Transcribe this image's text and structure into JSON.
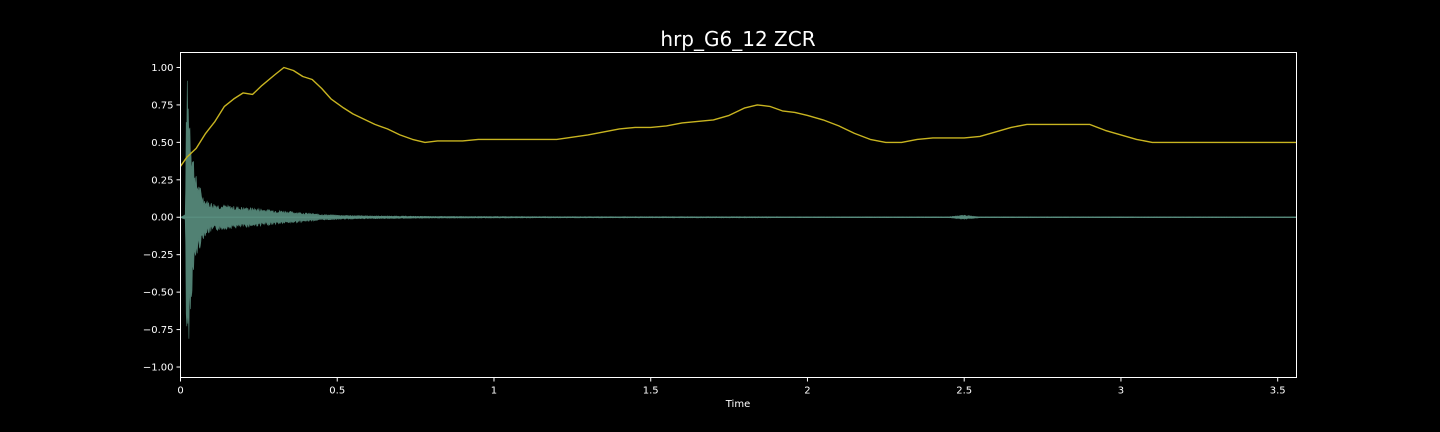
{
  "chart_data": {
    "type": "line",
    "title": "hrp_G6_12 ZCR",
    "xlabel": "Time",
    "ylabel": "",
    "xlim": [
      0,
      3.56
    ],
    "ylim": [
      -1.07,
      1.1
    ],
    "grid": false,
    "legend": "none",
    "x_ticks": [
      0,
      0.5,
      1,
      1.5,
      2,
      2.5,
      3,
      3.5
    ],
    "x_tick_labels": [
      "0",
      "0.5",
      "1",
      "1.5",
      "2",
      "2.5",
      "3",
      "3.5"
    ],
    "y_ticks": [
      -1.0,
      -0.75,
      -0.5,
      -0.25,
      0.0,
      0.25,
      0.5,
      0.75,
      1.0
    ],
    "y_tick_labels": [
      "−1.00",
      "−0.75",
      "−0.50",
      "−0.25",
      "0.00",
      "0.25",
      "0.50",
      "0.75",
      "1.00"
    ],
    "colors": {
      "background": "#000000",
      "axes": "#ffffff",
      "zcr": "#c8b420",
      "waveform": "#5a8f80"
    },
    "series": [
      {
        "kind": "line",
        "x": [
          0.0,
          0.02,
          0.05,
          0.08,
          0.11,
          0.14,
          0.17,
          0.2,
          0.23,
          0.26,
          0.3,
          0.33,
          0.36,
          0.39,
          0.42,
          0.45,
          0.48,
          0.52,
          0.55,
          0.58,
          0.62,
          0.66,
          0.7,
          0.74,
          0.78,
          0.82,
          0.86,
          0.9,
          0.95,
          1.0,
          1.1,
          1.2,
          1.3,
          1.35,
          1.4,
          1.45,
          1.5,
          1.55,
          1.6,
          1.65,
          1.7,
          1.75,
          1.8,
          1.84,
          1.88,
          1.92,
          1.96,
          2.0,
          2.05,
          2.1,
          2.15,
          2.2,
          2.25,
          2.3,
          2.35,
          2.4,
          2.45,
          2.5,
          2.55,
          2.6,
          2.65,
          2.7,
          2.75,
          2.8,
          2.85,
          2.9,
          2.95,
          3.0,
          3.05,
          3.1,
          3.2,
          3.3,
          3.4,
          3.5,
          3.56
        ],
        "y": [
          0.34,
          0.4,
          0.46,
          0.56,
          0.64,
          0.74,
          0.79,
          0.83,
          0.82,
          0.88,
          0.95,
          1.0,
          0.98,
          0.94,
          0.92,
          0.86,
          0.79,
          0.73,
          0.69,
          0.66,
          0.62,
          0.59,
          0.55,
          0.52,
          0.5,
          0.51,
          0.51,
          0.51,
          0.52,
          0.52,
          0.52,
          0.52,
          0.55,
          0.57,
          0.59,
          0.6,
          0.6,
          0.61,
          0.63,
          0.64,
          0.65,
          0.68,
          0.73,
          0.75,
          0.74,
          0.71,
          0.7,
          0.68,
          0.65,
          0.61,
          0.56,
          0.52,
          0.5,
          0.5,
          0.52,
          0.53,
          0.53,
          0.53,
          0.54,
          0.57,
          0.6,
          0.62,
          0.62,
          0.62,
          0.62,
          0.62,
          0.58,
          0.55,
          0.52,
          0.5,
          0.5,
          0.5,
          0.5,
          0.5,
          0.5
        ]
      },
      {
        "kind": "waveform-envelope",
        "x": [
          0.0,
          0.015,
          0.02,
          0.025,
          0.03,
          0.035,
          0.04,
          0.045,
          0.05,
          0.06,
          0.07,
          0.08,
          0.1,
          0.12,
          0.15,
          0.2,
          0.25,
          0.3,
          0.35,
          0.4,
          0.45,
          0.5,
          0.55,
          0.6,
          0.7,
          0.8,
          1.0,
          1.2,
          1.5,
          1.8,
          2.0,
          2.2,
          2.45,
          2.5,
          2.55,
          2.6,
          3.0,
          3.56
        ],
        "amplitude": [
          0.0,
          0.02,
          0.97,
          0.85,
          0.75,
          0.55,
          0.45,
          0.35,
          0.28,
          0.22,
          0.16,
          0.12,
          0.1,
          0.09,
          0.08,
          0.07,
          0.06,
          0.05,
          0.04,
          0.03,
          0.02,
          0.015,
          0.012,
          0.01,
          0.008,
          0.006,
          0.005,
          0.004,
          0.004,
          0.004,
          0.003,
          0.003,
          0.003,
          0.015,
          0.003,
          0.003,
          0.003,
          0.002
        ]
      }
    ]
  }
}
